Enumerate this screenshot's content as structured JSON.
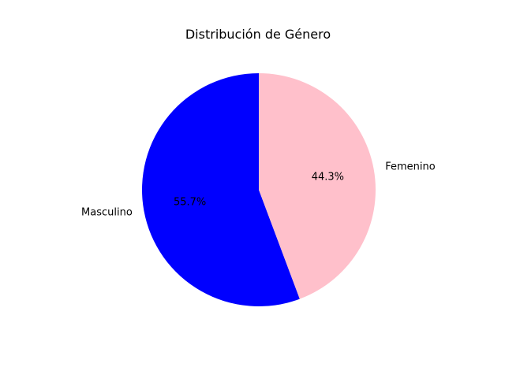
{
  "chart_data": {
    "type": "pie",
    "title": "Distribución de Género",
    "categories": [
      "Masculino",
      "Femenino"
    ],
    "values": [
      55.7,
      44.3
    ],
    "percent_labels": [
      "55.7%",
      "44.3%"
    ],
    "colors": [
      "#0000ff",
      "#ffc0cb"
    ],
    "start_angle_deg": 90,
    "direction": "counterclockwise",
    "legend": "none"
  }
}
